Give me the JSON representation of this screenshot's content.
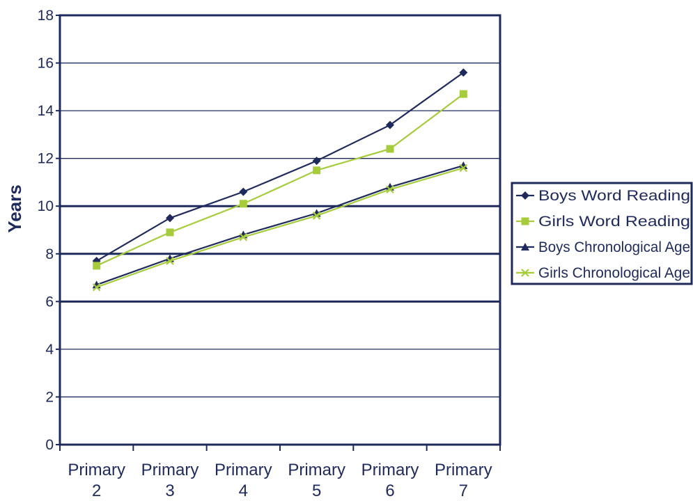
{
  "chart_data": {
    "type": "line",
    "ylabel": "Years",
    "ylim": [
      0,
      18
    ],
    "y_ticks": [
      "0",
      "2",
      "4",
      "6",
      "8",
      "10",
      "12",
      "14",
      "16",
      "18"
    ],
    "categories": [
      [
        "Primary",
        "2"
      ],
      [
        "Primary",
        "3"
      ],
      [
        "Primary",
        "4"
      ],
      [
        "Primary",
        "5"
      ],
      [
        "Primary",
        "6"
      ],
      [
        "Primary",
        "7"
      ]
    ],
    "grid": true,
    "legend_position": "right",
    "series": [
      {
        "name": "Boys Word Reading",
        "marker": "diamond",
        "color": "#1f2a5c",
        "values": [
          7.7,
          9.5,
          10.6,
          11.9,
          13.4,
          15.6
        ]
      },
      {
        "name": "Girls Word Reading",
        "marker": "square",
        "color": "#a6cc3c",
        "values": [
          7.5,
          8.9,
          10.1,
          11.5,
          12.4,
          14.7
        ]
      },
      {
        "name": "Boys Chronological Age",
        "marker": "triangle",
        "color": "#1f2a5c",
        "values": [
          6.7,
          7.8,
          8.8,
          9.7,
          10.8,
          11.7
        ]
      },
      {
        "name": "Girls Chronological Age",
        "marker": "x",
        "color": "#a6cc3c",
        "values": [
          6.6,
          7.7,
          8.7,
          9.6,
          10.7,
          11.6
        ]
      }
    ]
  }
}
